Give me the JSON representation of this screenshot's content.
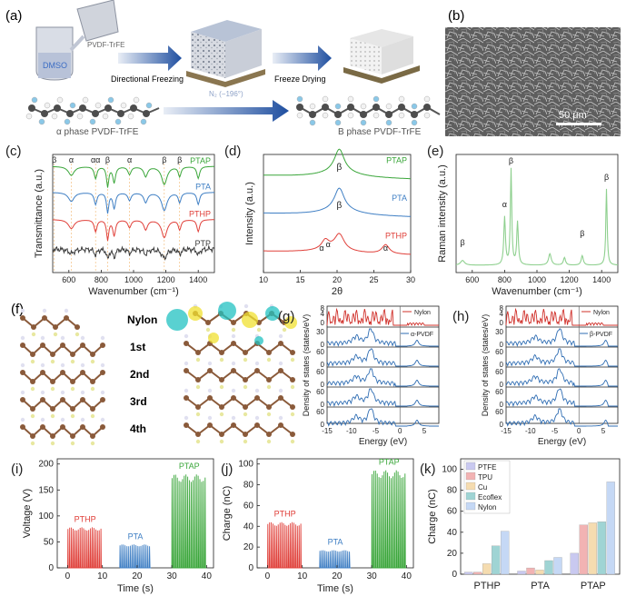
{
  "panels": {
    "a": {
      "label": "(a)",
      "dmso": "DMSO",
      "pvdf": "PVDF-TrFE",
      "step1": "Directional Freezing",
      "n2": "N₂ (−196°)",
      "step2": "Freeze Drying",
      "alpha_caption": "α phase PVDF-TrFE",
      "beta_caption": "Β phase PVDF-TrFE"
    },
    "b": {
      "label": "(b)",
      "scalebar": "50 μm"
    },
    "f": {
      "label": "(f)",
      "layers": [
        "Nylon",
        "1st",
        "2nd",
        "3rd",
        "4th"
      ]
    },
    "g": {
      "label": "(g)",
      "top_legend": "Nylon",
      "bottom_legend": "α-PVDF"
    },
    "h": {
      "label": "(h)",
      "top_legend": "Nylon",
      "bottom_legend": "β-PVDF"
    },
    "dos_shared": {
      "ylabel": "Density of states (states/eV)",
      "xlabel": "Energy (eV)",
      "top_ticks": [
        "8",
        "4",
        "0"
      ],
      "row_ticks": [
        "30",
        "0",
        "60",
        "0",
        "60",
        "0",
        "60",
        "0",
        "60",
        "0"
      ]
    }
  },
  "colors": {
    "ptap": "#3aa63a",
    "pta": "#3f7fc4",
    "pthp": "#e0403a",
    "ptp": "#3a3a3a",
    "raman": "#8fd08f",
    "ptfe": "#c9c9f0",
    "tpu": "#f2b3b3",
    "cu": "#f5dcb0",
    "ecoflex": "#9fd4d4",
    "nylon": "#c5d8f5"
  },
  "chart_data": [
    {
      "id": "c",
      "label": "(c)",
      "type": "line",
      "xlabel": "Wavenumber (cm⁻¹)",
      "ylabel": "Transmittance (a.u.)",
      "xlim": [
        500,
        1500
      ],
      "xticks": [
        600,
        800,
        1000,
        1200,
        1400
      ],
      "series": [
        {
          "name": "PTAP",
          "baseline": 0.9
        },
        {
          "name": "PTA",
          "baseline": 0.68
        },
        {
          "name": "PTHP",
          "baseline": 0.45
        },
        {
          "name": "PTP",
          "baseline": 0.2
        }
      ],
      "peak_marks": [
        "β",
        "α",
        "αα",
        "β",
        "α",
        "β",
        "β"
      ],
      "peak_positions": [
        510,
        615,
        765,
        840,
        975,
        1190,
        1285
      ]
    },
    {
      "id": "d",
      "label": "(d)",
      "type": "line",
      "xlabel": "2θ",
      "ylabel": "Intensity (a.u.)",
      "xlim": [
        10,
        30
      ],
      "xticks": [
        10,
        15,
        20,
        25,
        30
      ],
      "series": [
        {
          "name": "PTAP",
          "peaks": [
            20.3
          ]
        },
        {
          "name": "PTA",
          "peaks": [
            20.3
          ]
        },
        {
          "name": "PTHP",
          "peaks": [
            18.4,
            20.3,
            26.6
          ]
        }
      ],
      "annotations": [
        "β",
        "β",
        "α",
        "α",
        "α"
      ]
    },
    {
      "id": "e",
      "label": "(e)",
      "type": "line",
      "xlabel": "Wavenumber (cm⁻¹)",
      "ylabel": "Raman intensity (a.u.)",
      "xlim": [
        500,
        1500
      ],
      "xticks": [
        600,
        800,
        1000,
        1200,
        1400
      ],
      "peaks": [
        {
          "x": 540,
          "mark": "β"
        },
        {
          "x": 800,
          "mark": "α"
        },
        {
          "x": 840,
          "mark": "β"
        },
        {
          "x": 1280,
          "mark": "β"
        },
        {
          "x": 1430,
          "mark": "β"
        }
      ]
    },
    {
      "id": "i",
      "label": "(i)",
      "type": "line",
      "xlabel": "Time (s)",
      "ylabel": "Voltage (V)",
      "xlim": [
        -3,
        42
      ],
      "ylim": [
        0,
        210
      ],
      "xticks": [
        0,
        10,
        20,
        30,
        40
      ],
      "yticks": [
        0,
        50,
        100,
        150,
        200
      ],
      "series": [
        {
          "name": "PTHP",
          "t_start": 0,
          "t_end": 10,
          "peak": 78
        },
        {
          "name": "PTA",
          "t_start": 15,
          "t_end": 24,
          "peak": 45
        },
        {
          "name": "PTAP",
          "t_start": 30,
          "t_end": 40,
          "peak": 180
        }
      ]
    },
    {
      "id": "j",
      "label": "(j)",
      "type": "line",
      "xlabel": "Time (s)",
      "ylabel": "Charge (nC)",
      "xlim": [
        -3,
        42
      ],
      "ylim": [
        0,
        105
      ],
      "xticks": [
        0,
        10,
        20,
        30,
        40
      ],
      "yticks": [
        0,
        20,
        40,
        60,
        80,
        100
      ],
      "series": [
        {
          "name": "PTHP",
          "t_start": 0,
          "t_end": 10,
          "peak": 44
        },
        {
          "name": "PTA",
          "t_start": 15,
          "t_end": 24,
          "peak": 17
        },
        {
          "name": "PTAP",
          "t_start": 30,
          "t_end": 40,
          "peak": 94
        }
      ]
    },
    {
      "id": "k",
      "label": "(k)",
      "type": "bar",
      "xlabel": "",
      "ylabel": "Charge (nC)",
      "ylim": [
        0,
        110
      ],
      "yticks": [
        0,
        20,
        40,
        60,
        80,
        100
      ],
      "categories": [
        "PTHP",
        "PTA",
        "PTAP"
      ],
      "series": [
        {
          "name": "PTFE",
          "values": [
            2,
            3,
            20
          ]
        },
        {
          "name": "TPU",
          "values": [
            2,
            6,
            47
          ]
        },
        {
          "name": "Cu",
          "values": [
            10,
            4,
            49
          ]
        },
        {
          "name": "Ecoflex",
          "values": [
            27,
            13,
            50
          ]
        },
        {
          "name": "Nylon",
          "values": [
            41,
            16,
            88
          ]
        }
      ]
    }
  ]
}
